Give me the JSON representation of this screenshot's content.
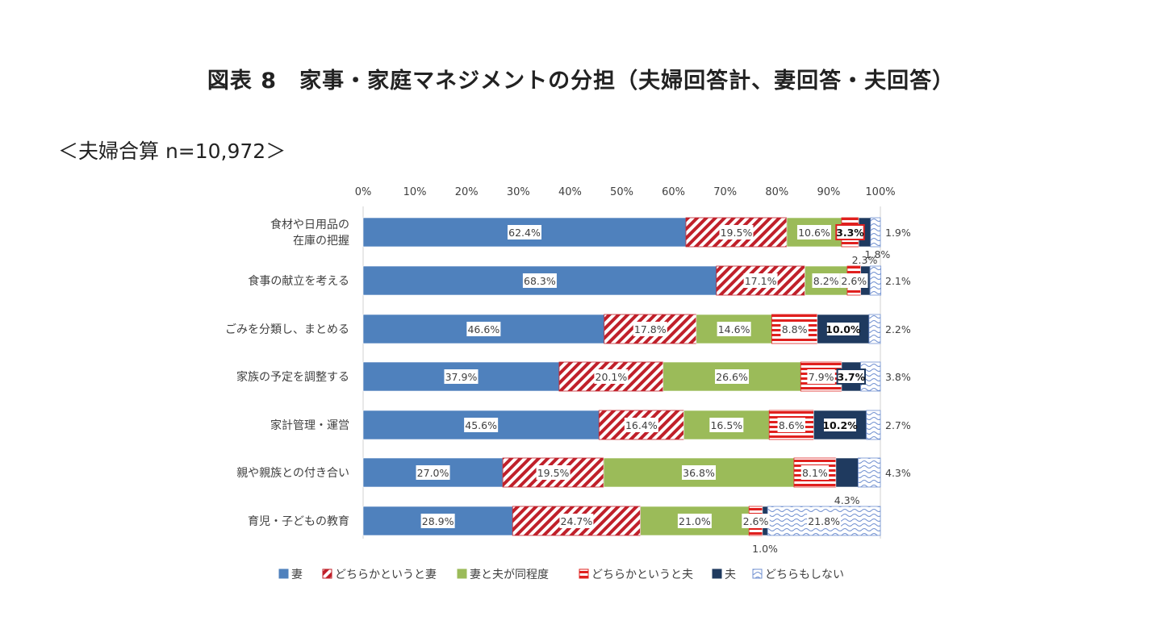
{
  "title": "図表 8　家事・家庭マネジメントの分担（夫婦回答計、妻回答・夫回答）",
  "subtitle": "＜夫婦合算 n=10,972＞",
  "chart_data": {
    "type": "bar",
    "orientation": "horizontal",
    "stacked": "percent",
    "xlim": [
      0,
      100
    ],
    "x_ticks": [
      "0%",
      "10%",
      "20%",
      "30%",
      "40%",
      "50%",
      "60%",
      "70%",
      "80%",
      "90%",
      "100%"
    ],
    "categories": [
      [
        "食材や日用品の",
        "在庫の把握"
      ],
      [
        "食事の献立を考える"
      ],
      [
        "ごみを分類し、まとめる"
      ],
      [
        "家族の予定を調整する"
      ],
      [
        "家計管理・運営"
      ],
      [
        "親や親族との付き合い"
      ],
      [
        "育児・子どもの教育"
      ]
    ],
    "series": [
      {
        "name": "妻",
        "color": "#4f81bd",
        "pattern": "solid",
        "values": [
          62.4,
          68.3,
          46.6,
          37.9,
          45.6,
          27.0,
          28.9
        ]
      },
      {
        "name": "どちらかというと妻",
        "color": "#c0202a",
        "pattern": "diagonal-stripes",
        "values": [
          19.5,
          17.1,
          17.8,
          20.1,
          16.4,
          19.5,
          24.7
        ]
      },
      {
        "name": "妻と夫が同程度",
        "color": "#9bbb59",
        "pattern": "solid",
        "values": [
          10.6,
          8.2,
          14.6,
          26.6,
          16.5,
          36.8,
          21.0
        ]
      },
      {
        "name": "どちらかというと夫",
        "color": "#e0201e",
        "pattern": "horizontal-stripes",
        "values": [
          3.3,
          2.6,
          8.8,
          7.9,
          8.6,
          8.1,
          2.6
        ]
      },
      {
        "name": "夫",
        "color": "#1f3a5f",
        "pattern": "solid",
        "values": [
          2.3,
          1.8,
          10.0,
          3.7,
          10.2,
          4.3,
          1.0
        ]
      },
      {
        "name": "どちらもしない",
        "color": "#6f8fd0",
        "pattern": "wave",
        "values": [
          1.9,
          2.1,
          2.2,
          3.8,
          2.7,
          4.3,
          21.8
        ]
      }
    ],
    "value_labels": [
      [
        "62.4%",
        "19.5%",
        "10.6%",
        "3.3%",
        "2.3%",
        "1.9%"
      ],
      [
        "68.3%",
        "17.1%",
        "8.2%",
        "2.6%",
        "1.8%",
        "2.1%"
      ],
      [
        "46.6%",
        "17.8%",
        "14.6%",
        "8.8%",
        "10.0%",
        "2.2%"
      ],
      [
        "37.9%",
        "20.1%",
        "26.6%",
        "7.9%",
        "3.7%",
        "3.8%"
      ],
      [
        "45.6%",
        "16.4%",
        "16.5%",
        "8.6%",
        "10.2%",
        "2.7%"
      ],
      [
        "27.0%",
        "19.5%",
        "36.8%",
        "8.1%",
        "4.3%",
        "4.3%"
      ],
      [
        "28.9%",
        "24.7%",
        "21.0%",
        "2.6%",
        "1.0%",
        "21.8%"
      ]
    ],
    "legend_position": "bottom",
    "grid": false
  }
}
